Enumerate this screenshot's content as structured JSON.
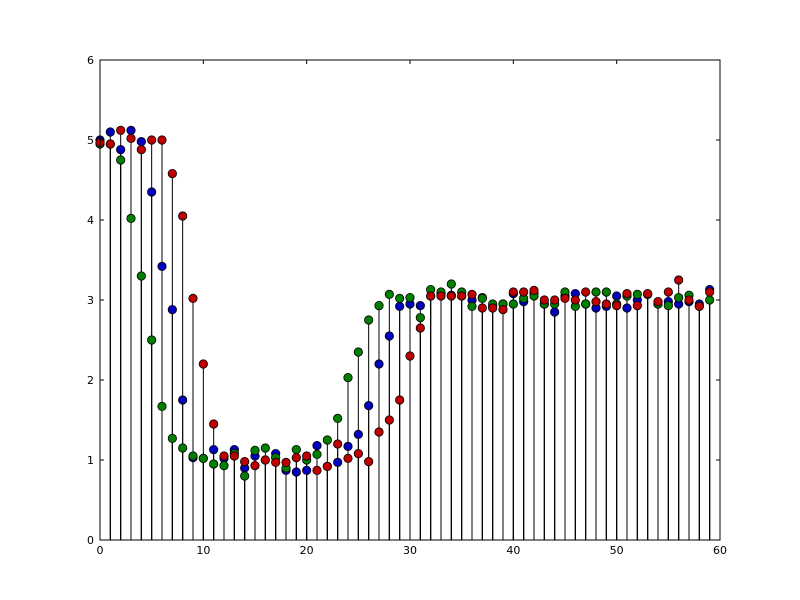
{
  "chart_data": {
    "type": "stem",
    "title": "",
    "xlabel": "",
    "ylabel": "",
    "xlim": [
      0,
      60
    ],
    "ylim": [
      0,
      6
    ],
    "xticks": [
      0,
      10,
      20,
      30,
      40,
      50,
      60
    ],
    "yticks": [
      0,
      1,
      2,
      3,
      4,
      5,
      6
    ],
    "xtick_labels": [
      "0",
      "10",
      "20",
      "30",
      "40",
      "50",
      "60"
    ],
    "ytick_labels": [
      "0",
      "1",
      "2",
      "3",
      "4",
      "5",
      "6"
    ],
    "grid": false,
    "x": [
      0,
      1,
      2,
      3,
      4,
      5,
      6,
      7,
      8,
      9,
      10,
      11,
      12,
      13,
      14,
      15,
      16,
      17,
      18,
      19,
      20,
      21,
      22,
      23,
      24,
      25,
      26,
      27,
      28,
      29,
      30,
      31,
      32,
      33,
      34,
      35,
      36,
      37,
      38,
      39,
      40,
      41,
      42,
      43,
      44,
      45,
      46,
      47,
      48,
      49,
      50,
      51,
      52,
      53,
      54,
      55,
      56,
      57,
      58,
      59
    ],
    "series": [
      {
        "color": "#0000bf",
        "values": [
          5.0,
          5.1,
          4.88,
          5.12,
          4.98,
          4.35,
          3.42,
          2.88,
          1.75,
          1.03,
          1.02,
          1.13,
          1.02,
          1.13,
          0.9,
          1.05,
          1.0,
          1.08,
          0.87,
          0.85,
          0.87,
          1.18,
          0.92,
          0.97,
          1.17,
          1.32,
          1.68,
          2.2,
          2.55,
          2.92,
          2.95,
          2.93,
          3.05,
          3.08,
          3.06,
          3.05,
          3.0,
          3.03,
          2.92,
          2.95,
          3.08,
          2.98,
          3.08,
          2.95,
          2.85,
          3.05,
          3.08,
          2.95,
          2.9,
          2.92,
          3.05,
          2.9,
          3.0,
          3.07,
          2.95,
          2.98,
          2.95,
          2.98,
          2.95,
          3.13
        ]
      },
      {
        "color": "#007f00",
        "values": [
          4.95,
          4.95,
          4.75,
          4.02,
          3.3,
          2.5,
          1.67,
          1.27,
          1.15,
          1.05,
          1.02,
          0.95,
          0.93,
          1.08,
          0.8,
          1.12,
          1.15,
          1.03,
          0.9,
          1.13,
          1.0,
          1.07,
          1.25,
          1.52,
          2.03,
          2.35,
          2.75,
          2.93,
          3.07,
          3.02,
          3.03,
          2.78,
          3.13,
          3.1,
          3.2,
          3.1,
          2.92,
          3.02,
          2.95,
          2.95,
          2.95,
          3.02,
          3.05,
          2.95,
          2.95,
          3.1,
          2.92,
          2.95,
          3.1,
          3.1,
          2.95,
          3.05,
          3.07,
          3.07,
          2.95,
          2.93,
          3.03,
          3.06,
          2.92,
          3.0
        ]
      },
      {
        "color": "#bf0000",
        "values": [
          4.97,
          4.95,
          5.12,
          5.02,
          4.88,
          5.0,
          5.0,
          4.58,
          4.05,
          3.02,
          2.2,
          1.45,
          1.05,
          1.05,
          0.98,
          0.93,
          1.0,
          0.97,
          0.97,
          1.03,
          1.05,
          0.87,
          0.92,
          1.2,
          1.02,
          1.08,
          0.98,
          1.35,
          1.5,
          1.75,
          2.3,
          2.65,
          3.05,
          3.05,
          3.05,
          3.05,
          3.07,
          2.9,
          2.9,
          2.88,
          3.1,
          3.1,
          3.12,
          3.0,
          3.0,
          3.02,
          3.0,
          3.1,
          2.98,
          2.95,
          2.93,
          3.08,
          2.93,
          3.08,
          2.98,
          3.1,
          3.25,
          3.0,
          2.92,
          3.1
        ]
      }
    ]
  }
}
